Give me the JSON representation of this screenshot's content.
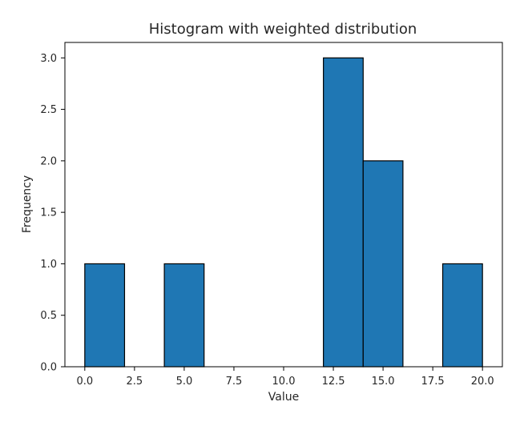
{
  "chart_data": {
    "type": "bar",
    "title": "Histogram with weighted distribution",
    "xlabel": "Value",
    "ylabel": "Frequency",
    "bins": [
      {
        "start": 0,
        "end": 2,
        "value": 1
      },
      {
        "start": 2,
        "end": 4,
        "value": 0
      },
      {
        "start": 4,
        "end": 6,
        "value": 1
      },
      {
        "start": 6,
        "end": 8,
        "value": 0
      },
      {
        "start": 8,
        "end": 10,
        "value": 0
      },
      {
        "start": 10,
        "end": 12,
        "value": 0
      },
      {
        "start": 12,
        "end": 14,
        "value": 3
      },
      {
        "start": 14,
        "end": 16,
        "value": 2
      },
      {
        "start": 16,
        "end": 18,
        "value": 0
      },
      {
        "start": 18,
        "end": 20,
        "value": 1
      }
    ],
    "xlim": [
      -1,
      21
    ],
    "ylim": [
      0,
      3.15
    ],
    "xticks": [
      0,
      2.5,
      5,
      7.5,
      10,
      12.5,
      15,
      17.5,
      20
    ],
    "xtick_labels": [
      "0.0",
      "2.5",
      "5.0",
      "7.5",
      "10.0",
      "12.5",
      "15.0",
      "17.5",
      "20.0"
    ],
    "yticks": [
      0,
      0.5,
      1,
      1.5,
      2,
      2.5,
      3
    ],
    "ytick_labels": [
      "0.0",
      "0.5",
      "1.0",
      "1.5",
      "2.0",
      "2.5",
      "3.0"
    ],
    "grid": false,
    "legend": "none",
    "colors": {
      "bar_fill": "#1f77b4",
      "bar_edge": "#000000"
    }
  }
}
